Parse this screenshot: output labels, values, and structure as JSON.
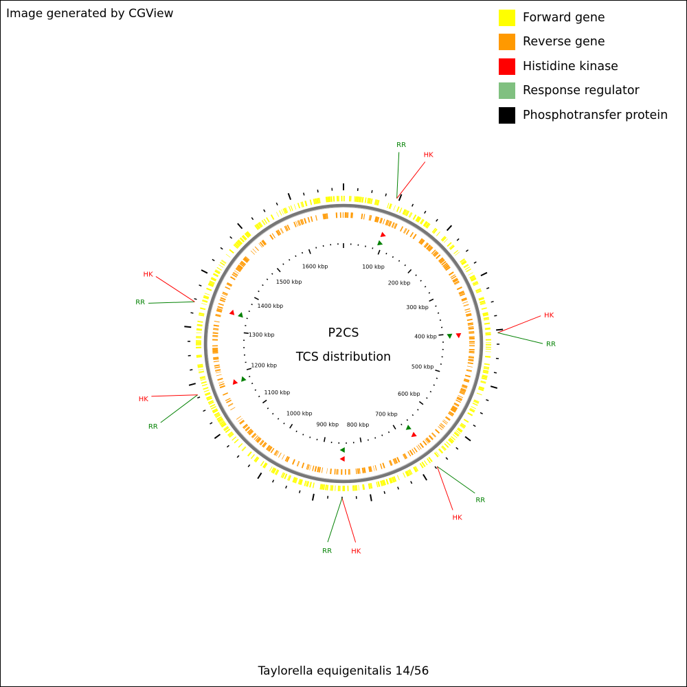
{
  "credit": "Image generated by CGView",
  "legend": [
    {
      "label": "Forward gene",
      "color": "#ffff00"
    },
    {
      "label": "Reverse gene",
      "color": "#ff9900"
    },
    {
      "label": "Histidine kinase",
      "color": "#ff0000"
    },
    {
      "label": "Response regulator",
      "color": "#80c080"
    },
    {
      "label": "Phosphotransfer protein",
      "color": "#000000"
    }
  ],
  "center": {
    "line1": "P2CS",
    "line2": "TCS distribution"
  },
  "species": "Taylorella equigenitalis 14/56",
  "genome": {
    "length_kbp": 1695,
    "tick_labels": [
      {
        "kbp": 100,
        "label": "100 kbp"
      },
      {
        "kbp": 200,
        "label": "200 kbp"
      },
      {
        "kbp": 300,
        "label": "300 kbp"
      },
      {
        "kbp": 400,
        "label": "400 kbp"
      },
      {
        "kbp": 500,
        "label": "500 kbp"
      },
      {
        "kbp": 600,
        "label": "600 kbp"
      },
      {
        "kbp": 700,
        "label": "700 kbp"
      },
      {
        "kbp": 800,
        "label": "800 kbp"
      },
      {
        "kbp": 900,
        "label": "900 kbp"
      },
      {
        "kbp": 1000,
        "label": "1000 kbp"
      },
      {
        "kbp": 1100,
        "label": "1100 kbp"
      },
      {
        "kbp": 1200,
        "label": "1200 kbp"
      },
      {
        "kbp": 1300,
        "label": "1300 kbp"
      },
      {
        "kbp": 1400,
        "label": "1400 kbp"
      },
      {
        "kbp": 1500,
        "label": "1500 kbp"
      },
      {
        "kbp": 1600,
        "label": "1600 kbp"
      }
    ],
    "tcs_loci": [
      {
        "kbp": 95,
        "labels": [
          "RR",
          "HK"
        ],
        "marks": [
          "HK",
          "RR"
        ]
      },
      {
        "kbp": 405,
        "labels": [
          "HK",
          "RR"
        ],
        "marks": [
          "HK",
          "RR"
        ]
      },
      {
        "kbp": 672,
        "labels": [
          "RR",
          "HK"
        ],
        "marks": [
          "HK",
          "RR"
        ]
      },
      {
        "kbp": 850,
        "labels": [
          "HK",
          "RR"
        ],
        "marks": [
          "HK",
          "RR"
        ]
      },
      {
        "kbp": 1180,
        "labels": [
          "RR",
          "HK"
        ],
        "marks": [
          "HK",
          "RR"
        ]
      },
      {
        "kbp": 1345,
        "labels": [
          "RR",
          "HK"
        ],
        "marks": [
          "HK",
          "RR"
        ]
      }
    ],
    "label_colors": {
      "HK": "#ff0000",
      "RR": "#008000"
    }
  }
}
